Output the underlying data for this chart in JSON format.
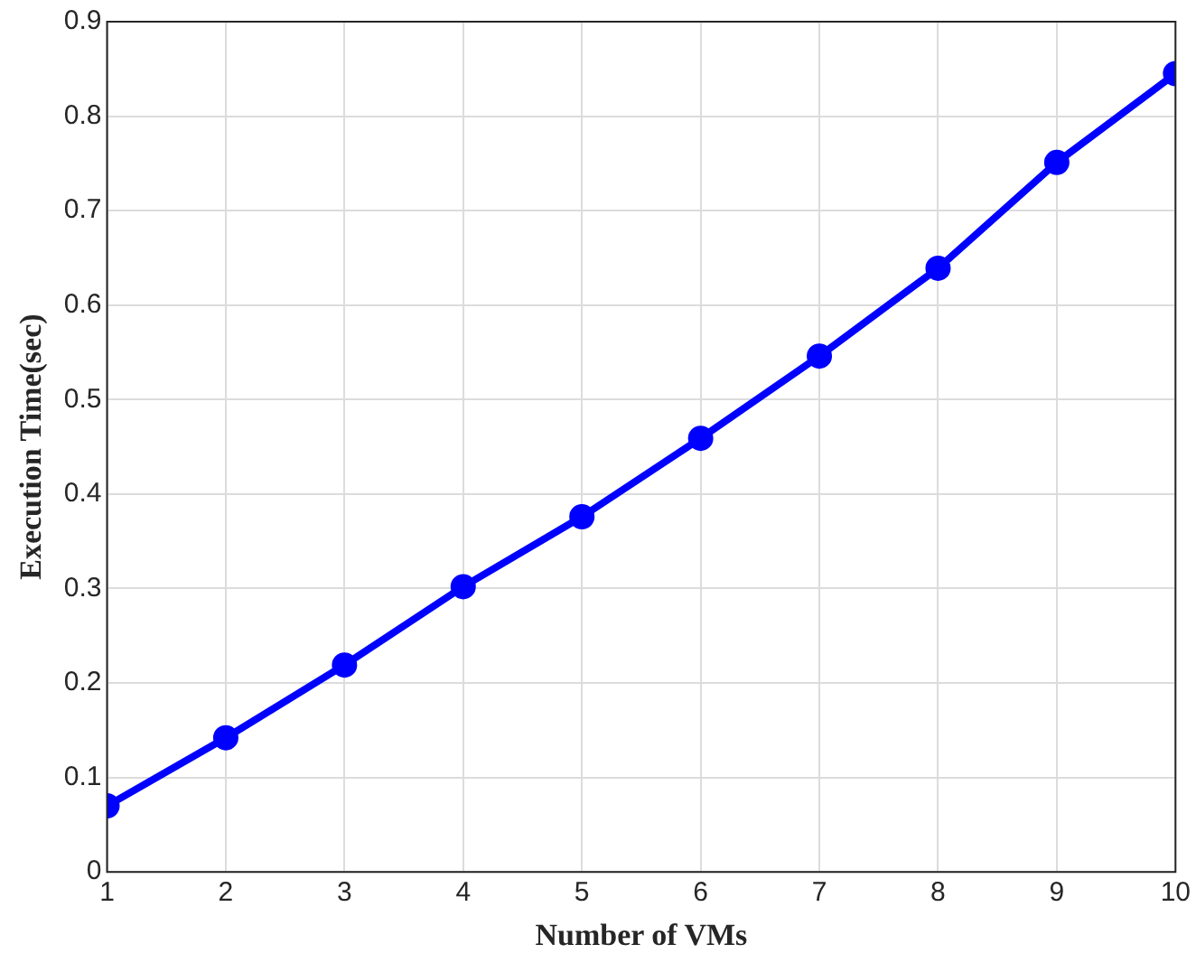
{
  "chart_data": {
    "type": "line",
    "xlabel": "Number of VMs",
    "ylabel": "Execution Time(sec)",
    "x": [
      1,
      2,
      3,
      4,
      5,
      6,
      7,
      8,
      9,
      10
    ],
    "series": [
      {
        "color": "#0000ff",
        "values": [
          0.07,
          0.142,
          0.219,
          0.302,
          0.376,
          0.459,
          0.546,
          0.639,
          0.751,
          0.845
        ]
      }
    ],
    "xlim": [
      1,
      10
    ],
    "xticks": [
      1,
      2,
      3,
      4,
      5,
      6,
      7,
      8,
      9,
      10
    ],
    "ylim": [
      0,
      0.9
    ],
    "yticks": [
      0,
      0.1,
      0.2,
      0.3,
      0.4,
      0.5,
      0.6,
      0.7,
      0.8,
      0.9
    ],
    "grid": true,
    "marker": "circle",
    "line_style": "solid",
    "legend": false
  }
}
